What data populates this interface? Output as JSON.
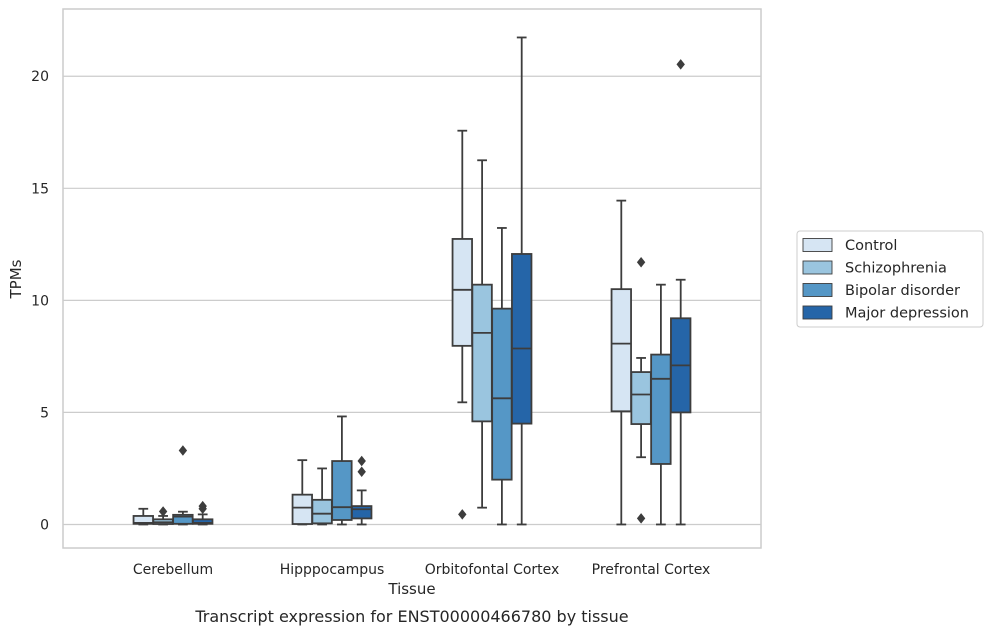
{
  "caption": "Transcript expression for ENST00000466780 by tissue",
  "chart_data": {
    "type": "box",
    "xlabel": "Tissue",
    "ylabel": "TPMs",
    "ylim": [
      -1.05,
      23
    ],
    "yticks": [
      0,
      5,
      10,
      15,
      20
    ],
    "grid": "horizontal",
    "legend_position": "right",
    "categories": [
      "Cerebellum",
      "Hipppocampus",
      "Orbitofontal Cortex",
      "Prefrontal Cortex"
    ],
    "series": [
      {
        "name": "Control",
        "color": "#d6e5f3",
        "boxes": [
          {
            "whislo": 0,
            "q1": 0.03,
            "med": 0.07,
            "q3": 0.38,
            "whishi": 0.7,
            "fliers": []
          },
          {
            "whislo": 0,
            "q1": 0.02,
            "med": 0.75,
            "q3": 1.33,
            "whishi": 2.87,
            "fliers": []
          },
          {
            "whislo": 5.45,
            "q1": 7.97,
            "med": 10.47,
            "q3": 12.74,
            "whishi": 17.57,
            "fliers": [
              0.45
            ]
          },
          {
            "whislo": 0,
            "q1": 5.05,
            "med": 8.07,
            "q3": 10.5,
            "whishi": 14.45,
            "fliers": []
          }
        ]
      },
      {
        "name": "Schizophrenia",
        "color": "#9ac5df",
        "boxes": [
          {
            "whislo": 0,
            "q1": 0.02,
            "med": 0.1,
            "q3": 0.23,
            "whishi": 0.38,
            "fliers": [
              0.58
            ]
          },
          {
            "whislo": 0,
            "q1": 0.05,
            "med": 0.48,
            "q3": 1.1,
            "whishi": 2.5,
            "fliers": []
          },
          {
            "whislo": 0.75,
            "q1": 4.6,
            "med": 8.55,
            "q3": 10.7,
            "whishi": 16.25,
            "fliers": []
          },
          {
            "whislo": 3.0,
            "q1": 4.48,
            "med": 5.8,
            "q3": 6.8,
            "whishi": 7.43,
            "fliers": [
              0.27,
              11.7
            ]
          }
        ]
      },
      {
        "name": "Bipolar disorder",
        "color": "#5597c6",
        "boxes": [
          {
            "whislo": 0,
            "q1": 0.03,
            "med": 0.35,
            "q3": 0.43,
            "whishi": 0.57,
            "fliers": [
              3.3
            ]
          },
          {
            "whislo": 0,
            "q1": 0.2,
            "med": 0.77,
            "q3": 2.83,
            "whishi": 4.82,
            "fliers": []
          },
          {
            "whislo": 0,
            "q1": 2.0,
            "med": 5.63,
            "q3": 9.63,
            "whishi": 13.23,
            "fliers": []
          },
          {
            "whislo": 0,
            "q1": 2.7,
            "med": 6.5,
            "q3": 7.58,
            "whishi": 10.7,
            "fliers": []
          }
        ]
      },
      {
        "name": "Major depression",
        "color": "#2565a8",
        "boxes": [
          {
            "whislo": 0,
            "q1": 0.03,
            "med": 0.07,
            "q3": 0.23,
            "whishi": 0.45,
            "fliers": [
              0.7,
              0.82
            ]
          },
          {
            "whislo": 0,
            "q1": 0.27,
            "med": 0.68,
            "q3": 0.82,
            "whishi": 1.52,
            "fliers": [
              2.35,
              2.83
            ]
          },
          {
            "whislo": 0,
            "q1": 4.5,
            "med": 7.85,
            "q3": 12.07,
            "whishi": 21.73,
            "fliers": []
          },
          {
            "whislo": 0,
            "q1": 5.0,
            "med": 7.1,
            "q3": 9.2,
            "whishi": 10.92,
            "fliers": [
              20.53
            ]
          }
        ]
      }
    ]
  }
}
